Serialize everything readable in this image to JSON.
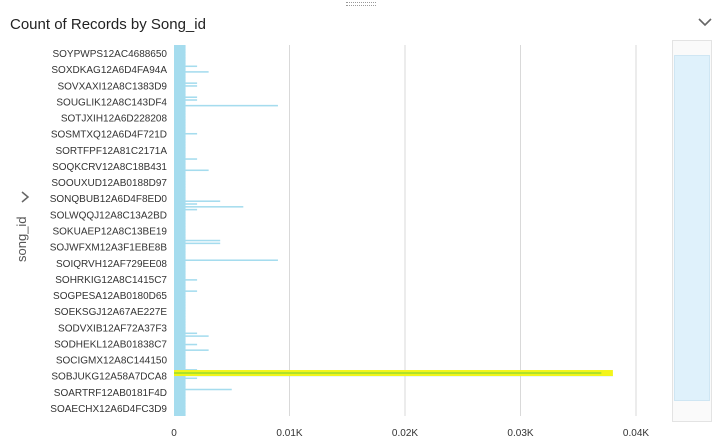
{
  "title": "Count of Records by Song_id",
  "colors": {
    "bar": "#a5dcee",
    "highlight": "#f3f51a",
    "highlight_line": "#aee12b",
    "grid": "#d9d9d9"
  },
  "icons": {
    "collapse": "chevron-down-icon",
    "axis_expand": "chevron-right-icon"
  },
  "chart_data": {
    "type": "bar",
    "orientation": "horizontal",
    "title": "Count of Records by Song_id",
    "xlabel": "",
    "ylabel": "song_id",
    "xlim": [
      0,
      0.04
    ],
    "x_ticks": [
      "0",
      "0.01K",
      "0.02K",
      "0.03K",
      "0.04K"
    ],
    "x_tick_values": [
      0,
      0.01,
      0.02,
      0.03,
      0.04
    ],
    "grid": true,
    "y_labels": [
      "SOYPWPS12AC4688650",
      "SOXDKAG12A6D4FA94A",
      "SOVXAXI12A8C1383D9",
      "SOUGLIK12A8C143DF4",
      "SOTJXIH12A6D228208",
      "SOSMTXQ12A6D4F721D",
      "SORTFPF12A81C2171A",
      "SOQKCRV12A8C18B431",
      "SOOUXUD12AB0188D97",
      "SONQBUB12A6D4F8ED0",
      "SOLWQQJ12A8C13A2BD",
      "SOKUAEP12A8C13BE19",
      "SOJWFXM12A3F1EBE8B",
      "SOIQRVH12AF729EE08",
      "SOHRKIG12A8C1415C7",
      "SOGPESA12AB0180D65",
      "SOEKSGJ12A67AE227E",
      "SODVXIB12AF72A37F3",
      "SODHEKL12AB01838C7",
      "SOCIGMX12A8C144150",
      "SOBJUKG12A58A7DCA8",
      "SOARTRF12AB0181F4D",
      "SOAECHX12A6D4FC3D9"
    ],
    "values": [
      0.001,
      0.001,
      0.001,
      0.001,
      0.001,
      0.001,
      0.001,
      0.002,
      0.001,
      0.003,
      0.001,
      0.001,
      0.001,
      0.002,
      0.002,
      0.001,
      0.001,
      0.001,
      0.002,
      0.002,
      0.001,
      0.009,
      0.001,
      0.001,
      0.001,
      0.001,
      0.001,
      0.001,
      0.001,
      0.001,
      0.001,
      0.002,
      0.001,
      0.001,
      0.001,
      0.001,
      0.001,
      0.001,
      0.001,
      0.001,
      0.002,
      0.001,
      0.001,
      0.001,
      0.003,
      0.001,
      0.001,
      0.001,
      0.001,
      0.001,
      0.001,
      0.001,
      0.001,
      0.001,
      0.001,
      0.004,
      0.002,
      0.006,
      0.002,
      0.001,
      0.001,
      0.001,
      0.001,
      0.001,
      0.001,
      0.001,
      0.001,
      0.001,
      0.001,
      0.004,
      0.004,
      0.001,
      0.001,
      0.001,
      0.001,
      0.001,
      0.009,
      0.001,
      0.001,
      0.001,
      0.001,
      0.001,
      0.001,
      0.002,
      0.001,
      0.001,
      0.001,
      0.002,
      0.001,
      0.001,
      0.001,
      0.001,
      0.001,
      0.001,
      0.001,
      0.001,
      0.001,
      0.001,
      0.001,
      0.001,
      0.001,
      0.001,
      0.002,
      0.003,
      0.001,
      0.001,
      0.002,
      0.001,
      0.003,
      0.001,
      0.001,
      0.001,
      0.001,
      0.001,
      0.001,
      0.002,
      0.037,
      0.038,
      0.002,
      0.001,
      0.001,
      0.001,
      0.005,
      0.001,
      0.001,
      0.001,
      0.001,
      0.001,
      0.001,
      0.001,
      0.001,
      0.001
    ],
    "highlighted_label": "SOBJUKG12A58A7DCA8",
    "highlighted_value": 0.038
  }
}
